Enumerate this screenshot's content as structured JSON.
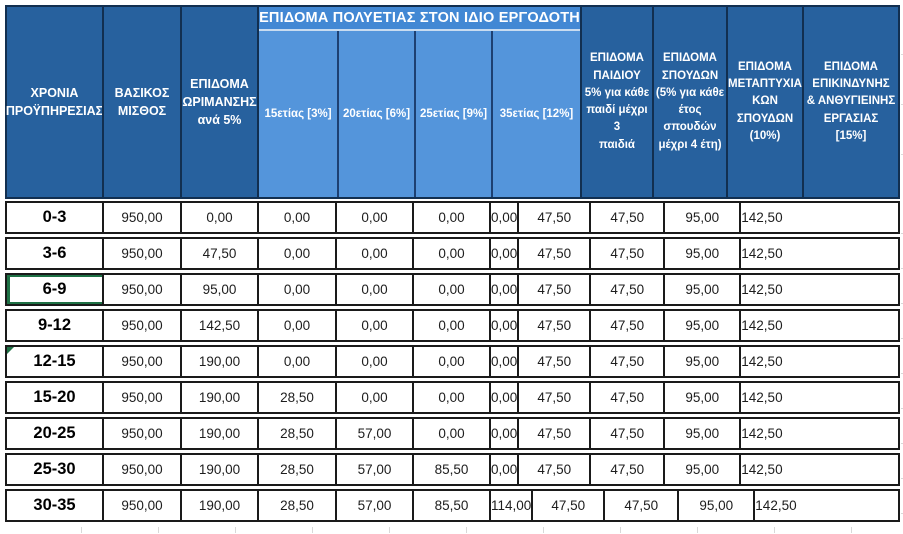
{
  "table": {
    "header": {
      "years": "ΧΡΟΝΙΑ\nΠΡΟΫΠΗΡΕΣΙΑΣ",
      "basic_salary": "ΒΑΣΙΚΟΣ\nΜΙΣΘΟΣ",
      "maturity": "ΕΠΙΔΟΜΑ\nΩΡΙΜΑΝΣΗΣ\nανά 5%",
      "longevity_title": "ΕΠΙΔΟΜΑ ΠΟΛΥΕΤΙΑΣ ΣΤΟΝ ΙΔΙΟ ΕΡΓΟΔΟΤΗ",
      "longevity_cols": [
        "15ετίας [3%]",
        "20ετίας [6%]",
        "25ετίας [9%]",
        "35ετίας [12%]"
      ],
      "child": "ΕΠΙΔΟΜΑ\nΠΑΙΔΙΟΥ\n5% για κάθε\nπαιδί μέχρι 3\nπαιδιά",
      "studies": "ΕΠΙΔΟΜΑ\nΣΠΟΥΔΩΝ\n(5% για κάθε\nέτος\nσπουδών\nμέχρι 4 έτη)",
      "postgrad": "ΕΠΙΔΟΜΑ\nΜΕΤΑΠΤΥΧΙΑ\nΚΩΝ\nΣΠΟΥΔΩΝ\n(10%)",
      "hazard": "ΕΠΙΔΟΜΑ\nΕΠΙΚΙΝΔΥΝΗΣ\n& ΑΝΘΥΓΙΕΙΝΗΣ\nΕΡΓΑΣΙΑΣ\n[15%]"
    },
    "rows": [
      {
        "label": "0-3",
        "values": [
          "950,00",
          "0,00",
          "0,00",
          "0,00",
          "0,00",
          "0,00",
          "47,50",
          "47,50",
          "95,00",
          "142,50"
        ]
      },
      {
        "label": "3-6",
        "values": [
          "950,00",
          "47,50",
          "0,00",
          "0,00",
          "0,00",
          "0,00",
          "47,50",
          "47,50",
          "95,00",
          "142,50"
        ]
      },
      {
        "label": "6-9",
        "values": [
          "950,00",
          "95,00",
          "0,00",
          "0,00",
          "0,00",
          "0,00",
          "47,50",
          "47,50",
          "95,00",
          "142,50"
        ]
      },
      {
        "label": "9-12",
        "values": [
          "950,00",
          "142,50",
          "0,00",
          "0,00",
          "0,00",
          "0,00",
          "47,50",
          "47,50",
          "95,00",
          "142,50"
        ]
      },
      {
        "label": "12-15",
        "values": [
          "950,00",
          "190,00",
          "0,00",
          "0,00",
          "0,00",
          "0,00",
          "47,50",
          "47,50",
          "95,00",
          "142,50"
        ]
      },
      {
        "label": "15-20",
        "values": [
          "950,00",
          "190,00",
          "28,50",
          "0,00",
          "0,00",
          "0,00",
          "47,50",
          "47,50",
          "95,00",
          "142,50"
        ]
      },
      {
        "label": "20-25",
        "values": [
          "950,00",
          "190,00",
          "28,50",
          "57,00",
          "0,00",
          "0,00",
          "47,50",
          "47,50",
          "95,00",
          "142,50"
        ]
      },
      {
        "label": "25-30",
        "values": [
          "950,00",
          "190,00",
          "28,50",
          "57,00",
          "85,50",
          "0,00",
          "47,50",
          "47,50",
          "95,00",
          "142,50"
        ]
      },
      {
        "label": "30-35",
        "values": [
          "950,00",
          "190,00",
          "28,50",
          "57,00",
          "85,50",
          "114,00",
          "47,50",
          "47,50",
          "95,00",
          "142,50"
        ]
      }
    ]
  },
  "state": {
    "selected_cell_row": "6-9",
    "comment_marker_row": "12-15"
  },
  "colors": {
    "header_dark_blue": "#27619E",
    "header_light_blue": "#5495DB",
    "banner_blue": "#4288D4",
    "selection_green": "#1E7145",
    "cell_border": "#1a1a1a",
    "header_border": "#122F50"
  }
}
